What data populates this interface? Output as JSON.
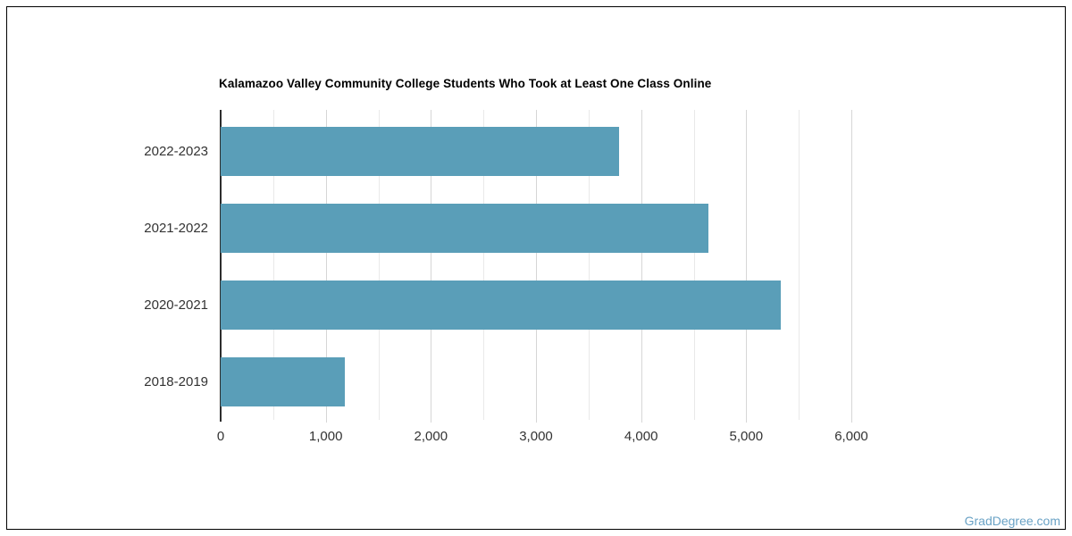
{
  "chart_data": {
    "type": "bar",
    "orientation": "horizontal",
    "title": "Kalamazoo Valley Community College Students Who Took at Least One Class Online",
    "categories": [
      "2022-2023",
      "2021-2022",
      "2020-2021",
      "2018-2019"
    ],
    "values": [
      3790,
      4640,
      5330,
      1180
    ],
    "xlabel": "",
    "ylabel": "",
    "xlim": [
      0,
      6000
    ],
    "x_tick_interval": 1000,
    "x_minor_tick_interval": 500,
    "x_tick_labels": [
      "0",
      "1,000",
      "2,000",
      "3,000",
      "4,000",
      "5,000",
      "6,000"
    ],
    "grid": true,
    "legend": "none",
    "bar_color": "#5a9eb8"
  },
  "watermark": {
    "text": "GradDegree.com",
    "color": "#69a2c5"
  }
}
